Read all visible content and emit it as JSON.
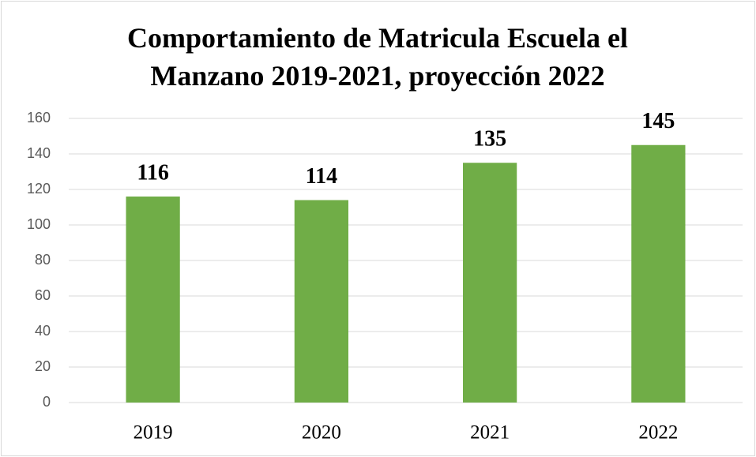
{
  "chart_data": {
    "type": "bar",
    "title": "Comportamiento de Matricula Escuela el Manzano 2019-2021, proyección 2022",
    "categories": [
      "2019",
      "2020",
      "2021",
      "2022"
    ],
    "values": [
      116,
      114,
      135,
      145
    ],
    "color": "#70ad47",
    "ylim": [
      0,
      160
    ],
    "yticks": [
      0,
      20,
      40,
      60,
      80,
      100,
      120,
      140,
      160
    ],
    "grid": true
  }
}
